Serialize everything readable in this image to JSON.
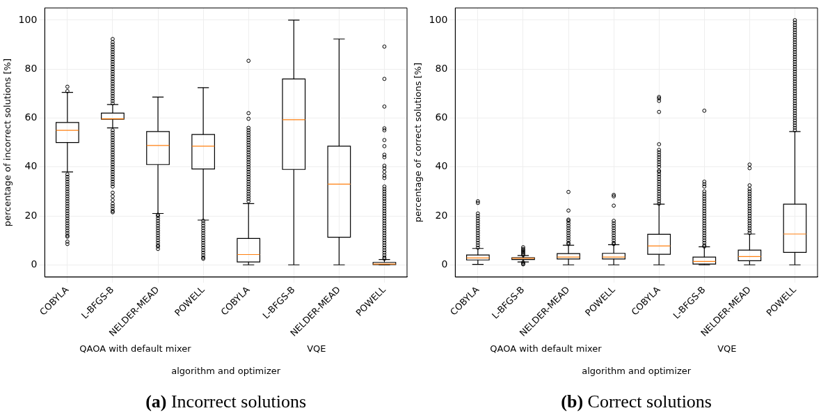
{
  "chart_data": [
    {
      "type": "box",
      "title": "(a) Incorrect solutions",
      "xlabel": "algorithm and optimizer",
      "ylabel": "percentage of incorrect solutions [%]",
      "categories": [
        "COBYLA",
        "L-BFGS-B",
        "NELDER-MEAD",
        "POWELL",
        "COBYLA",
        "L-BFGS-B",
        "NELDER-MEAD",
        "POWELL"
      ],
      "annotations": [
        "QAOA with default mixer",
        "VQE"
      ],
      "ylim": [
        -5,
        105
      ],
      "yticks": [
        0,
        20,
        40,
        60,
        80,
        100
      ],
      "grid": true,
      "color": "#000000",
      "boxes": [
        {
          "low": 38,
          "q1": 50,
          "median": 55,
          "q3": 58.2,
          "high": 70.5,
          "outliers": [
            72.8,
            71,
            37,
            36,
            35,
            34,
            33,
            32,
            31,
            30,
            29,
            28,
            27,
            26,
            25,
            24,
            23,
            22,
            21,
            20,
            19,
            18,
            17,
            16,
            15,
            14,
            13,
            12,
            11.5,
            9.5,
            8.5
          ]
        },
        {
          "low": 56,
          "q1": 59.5,
          "median": 59.7,
          "q3": 62,
          "high": 65.5,
          "outliers": [
            66,
            67,
            68,
            69,
            70,
            71,
            72,
            73,
            74,
            75,
            76,
            77,
            78,
            79,
            80,
            81,
            82,
            83,
            84,
            85,
            86,
            87,
            88,
            89,
            90,
            91,
            92.3,
            55,
            54,
            53,
            52,
            51,
            50,
            49,
            48,
            47,
            46,
            45,
            44,
            43,
            42,
            41,
            40,
            39,
            38,
            37,
            36,
            35,
            34,
            33,
            32,
            29.5,
            28,
            26.5,
            25,
            24,
            23,
            22,
            21.5
          ]
        },
        {
          "low": 21,
          "q1": 41,
          "median": 48.8,
          "q3": 54.5,
          "high": 68.6,
          "outliers": [
            20.5,
            20,
            19,
            18,
            17,
            16,
            15,
            14,
            13,
            12,
            11,
            10,
            9,
            8,
            7.5,
            6.5
          ]
        },
        {
          "low": 18.3,
          "q1": 39.2,
          "median": 48.5,
          "q3": 53.3,
          "high": 72.4,
          "outliers": [
            18,
            17,
            16,
            15,
            14,
            13,
            12,
            11,
            10,
            9,
            8,
            7,
            6,
            5,
            4,
            3,
            2.5
          ]
        },
        {
          "low": 0,
          "q1": 1.2,
          "median": 4.2,
          "q3": 10.8,
          "high": 25,
          "outliers": [
            26,
            27,
            28,
            29,
            30,
            31,
            32,
            33,
            34,
            35,
            36,
            37,
            38,
            39,
            40,
            41,
            42,
            43,
            44,
            45,
            46,
            47,
            48,
            49,
            50,
            51,
            52,
            53,
            54,
            55,
            56,
            59.7,
            62,
            83.4
          ]
        },
        {
          "low": 0,
          "q1": 39,
          "median": 59.3,
          "q3": 76,
          "high": 100
        },
        {
          "low": 0,
          "q1": 11.3,
          "median": 33,
          "q3": 48.5,
          "high": 92.3
        },
        {
          "low": 0,
          "q1": 0.1,
          "median": 0.3,
          "q3": 1,
          "high": 2.2,
          "outliers": [
            2.5,
            3,
            4,
            5,
            6,
            7,
            8,
            9,
            10,
            11,
            12,
            13,
            14,
            15,
            16,
            17,
            18,
            19,
            20,
            21,
            22,
            23,
            24,
            25,
            26,
            27,
            28,
            29,
            30,
            31,
            32,
            35.5,
            36.5,
            38,
            39.5,
            40.5,
            44,
            45,
            48.5,
            51,
            55,
            55.8,
            64.7,
            76,
            89.2
          ]
        }
      ]
    },
    {
      "type": "box",
      "title": "(b) Correct solutions",
      "xlabel": "algorithm and optimizer",
      "ylabel": "percentage of correct solutions [%]",
      "categories": [
        "COBYLA",
        "L-BFGS-B",
        "NELDER-MEAD",
        "POWELL",
        "COBYLA",
        "L-BFGS-B",
        "NELDER-MEAD",
        "POWELL"
      ],
      "annotations": [
        "QAOA with default mixer",
        "VQE"
      ],
      "ylim": [
        -5,
        105
      ],
      "yticks": [
        0,
        20,
        40,
        60,
        80,
        100
      ],
      "grid": true,
      "color": "#000000",
      "boxes": [
        {
          "low": 0.2,
          "q1": 2,
          "median": 2.8,
          "q3": 4,
          "high": 6.7,
          "outliers": [
            7,
            8,
            9,
            10,
            11,
            12,
            13,
            14,
            15,
            16,
            17,
            18,
            19,
            20,
            21,
            25.3,
            26
          ]
        },
        {
          "low": 1.2,
          "q1": 2.2,
          "median": 2.7,
          "q3": 2.9,
          "high": 3.8,
          "outliers": [
            4,
            4.5,
            5,
            5.5,
            6,
            6.5,
            7.2,
            1,
            0.5,
            0.2
          ]
        },
        {
          "low": 0,
          "q1": 2.4,
          "median": 3.2,
          "q3": 4.6,
          "high": 8,
          "outliers": [
            8.5,
            9,
            10,
            11,
            12,
            13,
            14,
            15,
            16,
            17,
            18,
            18.5,
            22.2,
            29.8
          ]
        },
        {
          "low": 0,
          "q1": 2.4,
          "median": 3.2,
          "q3": 4.7,
          "high": 8.2,
          "outliers": [
            8.5,
            9,
            10,
            11,
            12,
            13,
            14,
            15,
            16,
            17,
            18,
            24.2,
            28,
            28.6
          ]
        },
        {
          "low": 0,
          "q1": 4.3,
          "median": 7.7,
          "q3": 12.5,
          "high": 24.8,
          "outliers": [
            25,
            26,
            27,
            28,
            29,
            30,
            31,
            32,
            33,
            34,
            35,
            36,
            37,
            38,
            38.5,
            40,
            41,
            42,
            43,
            44,
            45,
            46,
            47,
            49.3,
            62.5,
            67,
            68,
            68.6
          ]
        },
        {
          "low": 0,
          "q1": 0.3,
          "median": 1.4,
          "q3": 3.2,
          "high": 7.4,
          "outliers": [
            7.5,
            8,
            9,
            10,
            11,
            12,
            13,
            14,
            15,
            16,
            17,
            18,
            19,
            20,
            21,
            22,
            23,
            24,
            25,
            26,
            27,
            28,
            29,
            30,
            32,
            33,
            34,
            63
          ]
        },
        {
          "low": 0,
          "q1": 1.7,
          "median": 3.4,
          "q3": 6,
          "high": 12.6,
          "outliers": [
            13,
            14,
            15,
            16,
            17,
            18,
            19,
            20,
            21,
            22,
            23,
            24,
            25,
            26,
            27,
            28,
            29,
            30,
            31,
            32.5,
            39.5,
            41
          ]
        },
        {
          "low": 0,
          "q1": 5.1,
          "median": 12.6,
          "q3": 24.8,
          "high": 54.5,
          "outliers": [
            55,
            56,
            57,
            58,
            59,
            60,
            61,
            62,
            63,
            64,
            65,
            66,
            67,
            68,
            69,
            70,
            71,
            72,
            73,
            74,
            75,
            76,
            77,
            78,
            79,
            80,
            81,
            82,
            83,
            84,
            85,
            86,
            87,
            88,
            89,
            90,
            91,
            92,
            93,
            94,
            95,
            96,
            97,
            98,
            99,
            100
          ]
        }
      ]
    }
  ]
}
